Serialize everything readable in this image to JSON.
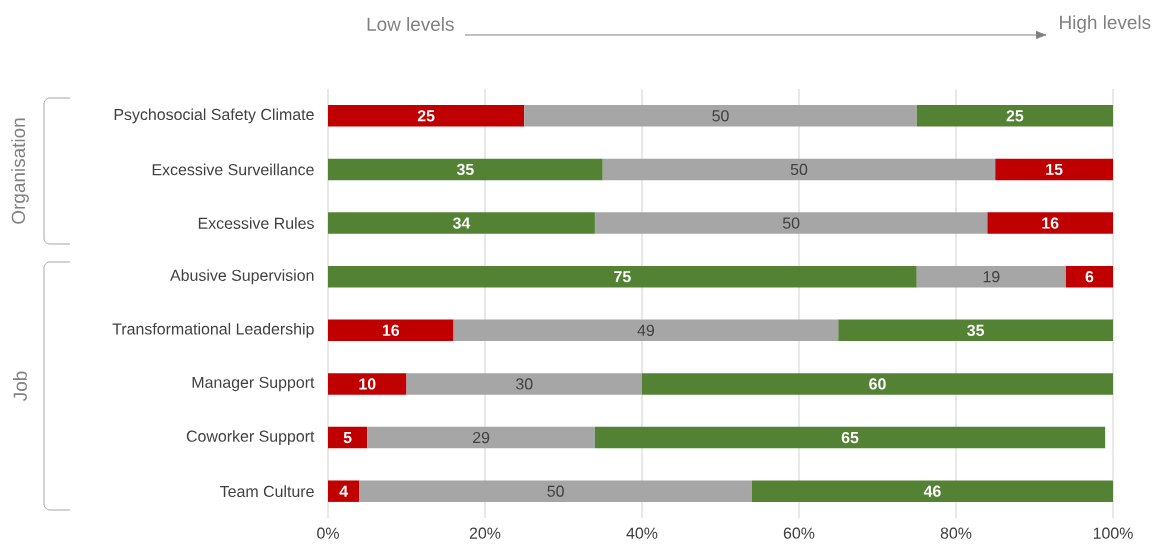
{
  "chart_data": {
    "type": "bar",
    "orientation": "horizontal",
    "stacked": true,
    "categories": [
      "Psychosocial Safety Climate",
      "Excessive Surveillance",
      "Excessive Rules",
      "Abusive Supervision",
      "Transformational Leadership",
      "Manager Support",
      "Coworker Support",
      "Team Culture"
    ],
    "series": [
      {
        "colors": [
          "#c00000",
          "#548235",
          "#548235",
          "#548235",
          "#c00000",
          "#c00000",
          "#c00000",
          "#c00000"
        ],
        "values": [
          25,
          35,
          34,
          75,
          16,
          10,
          5,
          4
        ]
      },
      {
        "colors": [
          "#a6a6a6",
          "#a6a6a6",
          "#a6a6a6",
          "#a6a6a6",
          "#a6a6a6",
          "#a6a6a6",
          "#a6a6a6",
          "#a6a6a6"
        ],
        "values": [
          50,
          50,
          50,
          19,
          49,
          30,
          29,
          50
        ]
      },
      {
        "colors": [
          "#548235",
          "#c00000",
          "#c00000",
          "#c00000",
          "#548235",
          "#548235",
          "#548235",
          "#548235"
        ],
        "values": [
          25,
          15,
          16,
          6,
          35,
          60,
          65,
          46
        ]
      }
    ],
    "xlim": [
      0,
      100
    ],
    "xticks": [
      {
        "value": 0,
        "label": "0%"
      },
      {
        "value": 20,
        "label": "20%"
      },
      {
        "value": 40,
        "label": "40%"
      },
      {
        "value": 60,
        "label": "60%"
      },
      {
        "value": 80,
        "label": "80%"
      },
      {
        "value": 100,
        "label": "100%"
      }
    ],
    "grid": "x",
    "data_labels": true,
    "annotations": [
      "Low levels",
      "High levels",
      "Organisation",
      "Job"
    ]
  }
}
